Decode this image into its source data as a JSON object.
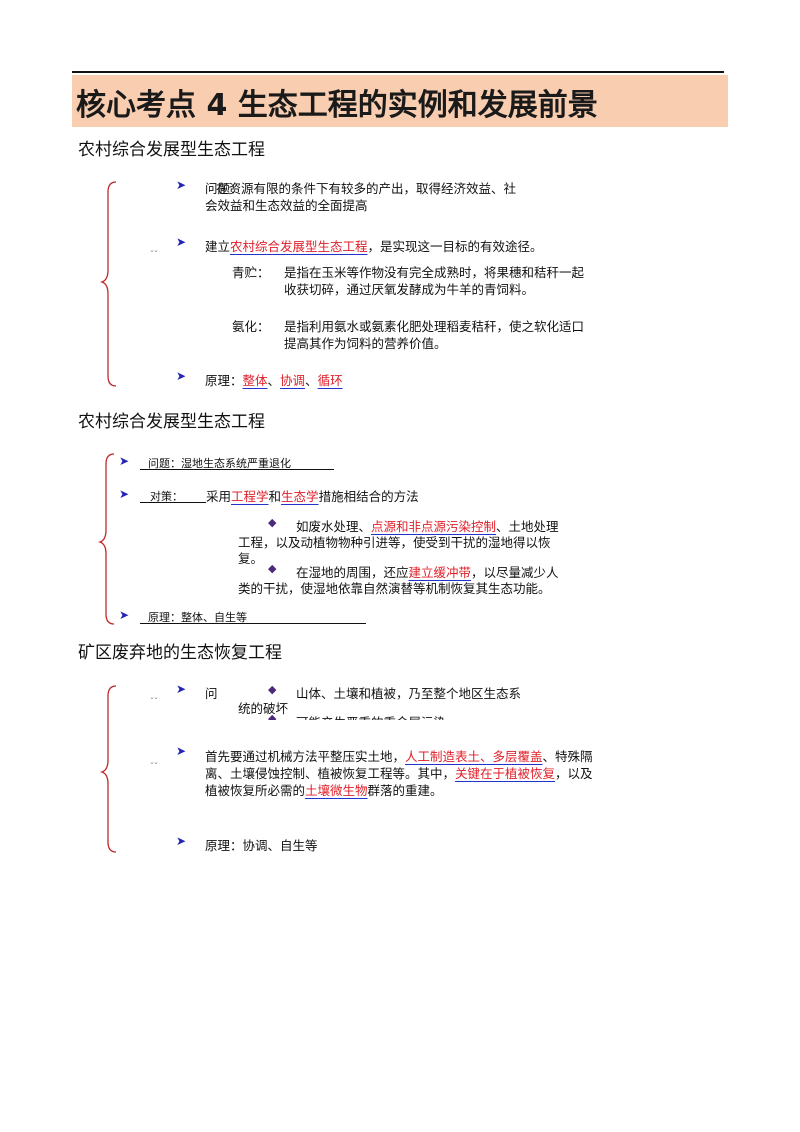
{
  "title": "核心考点 4 生态工程的实例和发展前景",
  "colors": {
    "title_bg": "#f8cdb0",
    "highlight_text": "#e0202a",
    "underline": "#2233cc",
    "brace": "#c0282a",
    "arrow": "#2424b8"
  },
  "section1": {
    "heading": "农村综合发展型生态工程",
    "problem": {
      "label": "问题：",
      "line1": "在资源有限的条件下有较多的产出，取得经济效益、社",
      "line2": "会效益和生态效益的全面提高"
    },
    "measure": {
      "pre": "建立",
      "hl": "农村综合发展型生态工程",
      "post": "，是实现这一目标的有效途径。"
    },
    "silage": {
      "label": "青贮：",
      "line1": "是指在玉米等作物没有完全成熟时，将果穗和秸秆一起",
      "line2": "收获切碎，通过厌氧发酵成为牛羊的青饲料。"
    },
    "ammonia": {
      "label": "氨化：",
      "line1": "是指利用氨水或氨素化肥处理稻麦秸秆，使之软化适口",
      "line2": "提高其作为饲料的营养价值。"
    },
    "principle": {
      "label": "原理：",
      "items": [
        "整体",
        "协调",
        "循环"
      ],
      "sep": "、"
    }
  },
  "section2": {
    "heading": "农村综合发展型生态工程",
    "problem": "问题：湿地生态系统严重退化",
    "measure": {
      "label": "对策：",
      "pre": "采用",
      "hl1": "工程学",
      "mid": "和",
      "hl2": "生态学",
      "post": "措施相结合的方法"
    },
    "item1": {
      "pre": "如废水处理、",
      "hl": "点源和非点源污染控制",
      "post1": "、土地处理",
      "line2": "工程，以及动植物物种引进等，使受到干扰的湿地得以恢",
      "line3": "复。"
    },
    "item2": {
      "pre": "在湿地的周围，还应",
      "hl": "建立缓冲带",
      "post1": "，以尽量减少人",
      "line2": "类的干扰，使湿地依靠自然演替等机制恢复其生态功能。"
    },
    "principle": "原理：整体、自生等"
  },
  "section3": {
    "heading": "矿区废弃地的生态恢复工程",
    "problem": {
      "label": "问",
      "item1_line1": "山体、土壤和植被，乃至整个地区生态系",
      "item1_line2": "统的破坏",
      "item2": "可能产生严重的重金属污染"
    },
    "measure": {
      "pre": "首先要通过机械方法平整压实土地，",
      "hl1": "人工制造表土、多层覆盖",
      "mid1": "、特殊隔",
      "line2_pre": "离、土壤侵蚀控制、植被恢复工程等。其中，",
      "hl2": "关键在于植被恢复",
      "line2_post": "，以及",
      "line3_pre": "植被恢复所必需的",
      "hl3": "土壤微生物",
      "line3_post": "群落的重建。"
    },
    "principle": "原理：协调、自生等"
  }
}
